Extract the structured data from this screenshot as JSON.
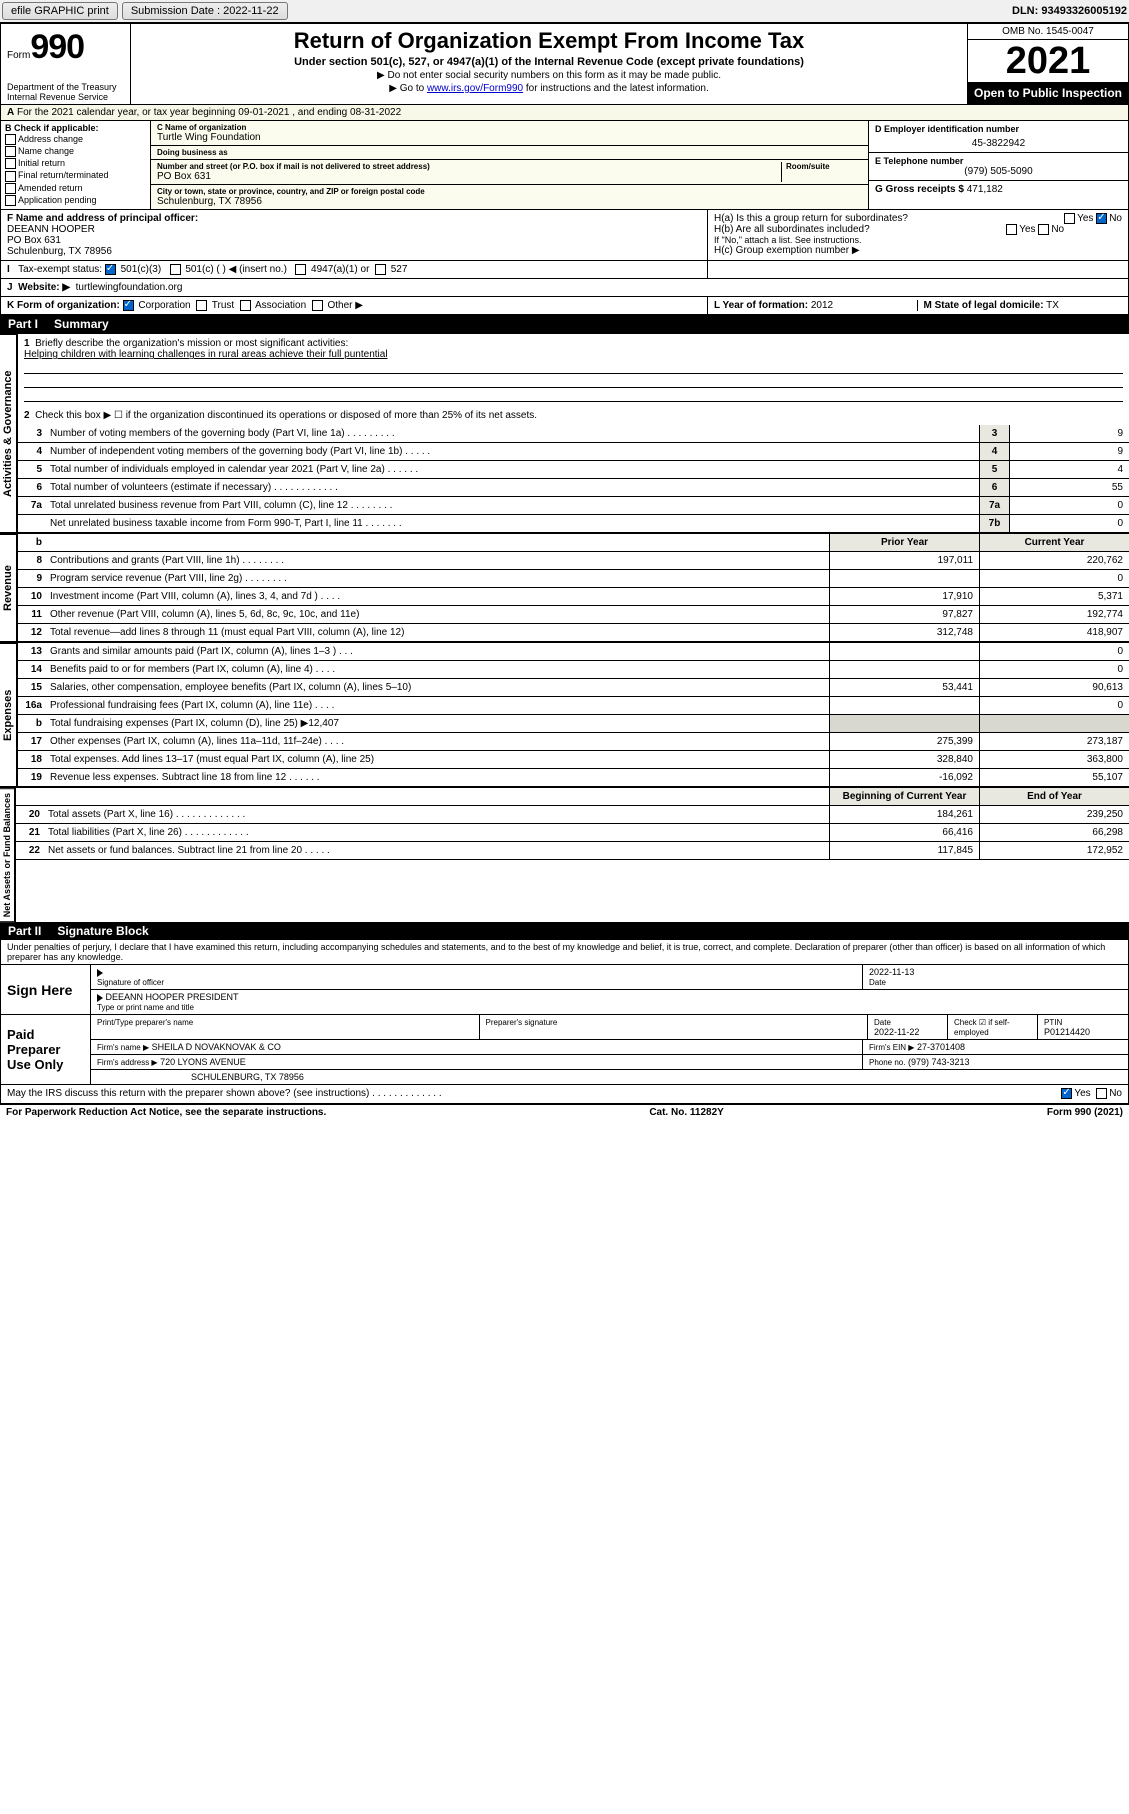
{
  "topbar": {
    "efile": "efile GRAPHIC print",
    "submission_label": "Submission Date : 2022-11-22",
    "dln": "DLN: 93493326005192"
  },
  "header": {
    "form_prefix": "Form",
    "form_number": "990",
    "dept": "Department of the Treasury\nInternal Revenue Service",
    "title": "Return of Organization Exempt From Income Tax",
    "subtitle": "Under section 501(c), 527, or 4947(a)(1) of the Internal Revenue Code (except private foundations)",
    "note1": "▶ Do not enter social security numbers on this form as it may be made public.",
    "note2_pre": "▶ Go to ",
    "note2_link": "www.irs.gov/Form990",
    "note2_post": " for instructions and the latest information.",
    "omb": "OMB No. 1545-0047",
    "year": "2021",
    "open": "Open to Public Inspection"
  },
  "periodA": "For the 2021 calendar year, or tax year beginning 09-01-2021    , and ending 08-31-2022",
  "B": {
    "hdr": "B Check if applicable:",
    "items": [
      "Address change",
      "Name change",
      "Initial return",
      "Final return/terminated",
      "Amended return",
      "Application pending"
    ]
  },
  "C": {
    "name_lbl": "C Name of organization",
    "name": "Turtle Wing Foundation",
    "dba_lbl": "Doing business as",
    "addr_lbl": "Number and street (or P.O. box if mail is not delivered to street address)",
    "room_lbl": "Room/suite",
    "addr": "PO Box 631",
    "city_lbl": "City or town, state or province, country, and ZIP or foreign postal code",
    "city": "Schulenburg, TX   78956"
  },
  "D": {
    "ein_lbl": "D Employer identification number",
    "ein": "45-3822942",
    "tel_lbl": "E Telephone number",
    "tel": "(979) 505-5090",
    "gross_lbl": "G Gross receipts $",
    "gross": "471,182"
  },
  "F": {
    "lbl": "F Name and address of principal officer:",
    "name": "DEEANN HOOPER",
    "addr1": "PO Box 631",
    "addr2": "Schulenburg, TX   78956"
  },
  "H": {
    "a": "H(a)  Is this a group return for subordinates?",
    "a_no": "No",
    "b": "H(b)  Are all subordinates included?",
    "b_note": "If \"No,\" attach a list. See instructions.",
    "c": "H(c)  Group exemption number ▶"
  },
  "I": {
    "lbl": "Tax-exempt status:",
    "o1": "501(c)(3)",
    "o2": "501(c) (    ) ◀ (insert no.)",
    "o3": "4947(a)(1) or",
    "o4": "527"
  },
  "J": {
    "lbl": "Website: ▶",
    "val": "turtlewingfoundation.org"
  },
  "K": {
    "lbl": "K Form of organization:",
    "o1": "Corporation",
    "o2": "Trust",
    "o3": "Association",
    "o4": "Other ▶"
  },
  "L": {
    "lbl": "L Year of formation:",
    "val": "2012"
  },
  "M": {
    "lbl": "M State of legal domicile:",
    "val": "TX"
  },
  "partI": {
    "num": "Part I",
    "title": "Summary"
  },
  "summary": {
    "q1": "Briefly describe the organization's mission or most significant activities:",
    "q1_ans": "Helping children with learning challenges in rural areas achieve their full puntential",
    "q2": "Check this box ▶ ☐ if the organization discontinued its operations or disposed of more than 25% of its net assets.",
    "rows_gov": [
      {
        "n": "3",
        "d": "Number of voting members of the governing body (Part VI, line 1a)  .  .  .  .  .  .  .  .  .",
        "b": "3",
        "v": "9"
      },
      {
        "n": "4",
        "d": "Number of independent voting members of the governing body (Part VI, line 1b)  .  .  .  .  .",
        "b": "4",
        "v": "9"
      },
      {
        "n": "5",
        "d": "Total number of individuals employed in calendar year 2021 (Part V, line 2a)  .  .  .  .  .  .",
        "b": "5",
        "v": "4"
      },
      {
        "n": "6",
        "d": "Total number of volunteers (estimate if necessary)  .  .  .  .  .  .  .  .  .  .  .  .",
        "b": "6",
        "v": "55"
      },
      {
        "n": "7a",
        "d": "Total unrelated business revenue from Part VIII, column (C), line 12  .  .  .  .  .  .  .  .",
        "b": "7a",
        "v": "0"
      },
      {
        "n": "",
        "d": "Net unrelated business taxable income from Form 990-T, Part I, line 11  .  .  .  .  .  .  .",
        "b": "7b",
        "v": "0"
      }
    ],
    "col_prior": "Prior Year",
    "col_curr": "Current Year",
    "rows_rev": [
      {
        "n": "8",
        "d": "Contributions and grants (Part VIII, line 1h)  .  .  .  .  .  .  .  .",
        "p": "197,011",
        "c": "220,762"
      },
      {
        "n": "9",
        "d": "Program service revenue (Part VIII, line 2g)  .  .  .  .  .  .  .  .",
        "p": "",
        "c": "0"
      },
      {
        "n": "10",
        "d": "Investment income (Part VIII, column (A), lines 3, 4, and 7d )  .  .  .  .",
        "p": "17,910",
        "c": "5,371"
      },
      {
        "n": "11",
        "d": "Other revenue (Part VIII, column (A), lines 5, 6d, 8c, 9c, 10c, and 11e)",
        "p": "97,827",
        "c": "192,774"
      },
      {
        "n": "12",
        "d": "Total revenue—add lines 8 through 11 (must equal Part VIII, column (A), line 12)",
        "p": "312,748",
        "c": "418,907"
      }
    ],
    "rows_exp": [
      {
        "n": "13",
        "d": "Grants and similar amounts paid (Part IX, column (A), lines 1–3 )  .  .  .",
        "p": "",
        "c": "0"
      },
      {
        "n": "14",
        "d": "Benefits paid to or for members (Part IX, column (A), line 4)  .  .  .  .",
        "p": "",
        "c": "0"
      },
      {
        "n": "15",
        "d": "Salaries, other compensation, employee benefits (Part IX, column (A), lines 5–10)",
        "p": "53,441",
        "c": "90,613"
      },
      {
        "n": "16a",
        "d": "Professional fundraising fees (Part IX, column (A), line 11e)  .  .  .  .",
        "p": "",
        "c": "0"
      },
      {
        "n": "b",
        "d": "Total fundraising expenses (Part IX, column (D), line 25) ▶12,407",
        "p": "GRAY",
        "c": "GRAY"
      },
      {
        "n": "17",
        "d": "Other expenses (Part IX, column (A), lines 11a–11d, 11f–24e)  .  .  .  .",
        "p": "275,399",
        "c": "273,187"
      },
      {
        "n": "18",
        "d": "Total expenses. Add lines 13–17 (must equal Part IX, column (A), line 25)",
        "p": "328,840",
        "c": "363,800"
      },
      {
        "n": "19",
        "d": "Revenue less expenses. Subtract line 18 from line 12  .  .  .  .  .  .",
        "p": "-16,092",
        "c": "55,107"
      }
    ],
    "col_boy": "Beginning of Current Year",
    "col_eoy": "End of Year",
    "rows_net": [
      {
        "n": "20",
        "d": "Total assets (Part X, line 16)  .  .  .  .  .  .  .  .  .  .  .  .  .",
        "p": "184,261",
        "c": "239,250"
      },
      {
        "n": "21",
        "d": "Total liabilities (Part X, line 26)   .  .  .  .  .  .  .  .  .  .  .  .",
        "p": "66,416",
        "c": "66,298"
      },
      {
        "n": "22",
        "d": "Net assets or fund balances. Subtract line 21 from line 20  .  .  .  .  .",
        "p": "117,845",
        "c": "172,952"
      }
    ]
  },
  "partII": {
    "num": "Part II",
    "title": "Signature Block"
  },
  "penalty": "Under penalties of perjury, I declare that I have examined this return, including accompanying schedules and statements, and to the best of my knowledge and belief, it is true, correct, and complete. Declaration of preparer (other than officer) is based on all information of which preparer has any knowledge.",
  "sign": {
    "here": "Sign Here",
    "sig_lbl": "Signature of officer",
    "date": "2022-11-13",
    "date_lbl": "Date",
    "name": "DEEANN HOOPER PRESIDENT",
    "name_lbl": "Type or print name and title"
  },
  "paid": {
    "here": "Paid Preparer Use Only",
    "r1": {
      "c1_lbl": "Print/Type preparer's name",
      "c2_lbl": "Preparer's signature",
      "c3_lbl": "Date",
      "c3": "2022-11-22",
      "c4_lbl": "Check ☑ if self-employed",
      "c5_lbl": "PTIN",
      "c5": "P01214420"
    },
    "r2": {
      "c1_lbl": "Firm's name    ▶",
      "c1": "SHEILA D NOVAKNOVAK & CO",
      "c2_lbl": "Firm's EIN ▶",
      "c2": "27-3701408"
    },
    "r3": {
      "c1_lbl": "Firm's address ▶",
      "c1": "720 LYONS AVENUE",
      "c2_lbl": "Phone no.",
      "c2": "(979) 743-3213"
    },
    "r4": "SCHULENBURG, TX  78956"
  },
  "discuss": "May the IRS discuss this return with the preparer shown above? (see instructions)  .  .  .  .  .  .  .  .  .  .  .  .  .",
  "footer": {
    "left": "For Paperwork Reduction Act Notice, see the separate instructions.",
    "mid": "Cat. No. 11282Y",
    "right": "Form 990 (2021)"
  },
  "vtabs": {
    "gov": "Activities & Governance",
    "rev": "Revenue",
    "exp": "Expenses",
    "net": "Net Assets or Fund Balances"
  }
}
